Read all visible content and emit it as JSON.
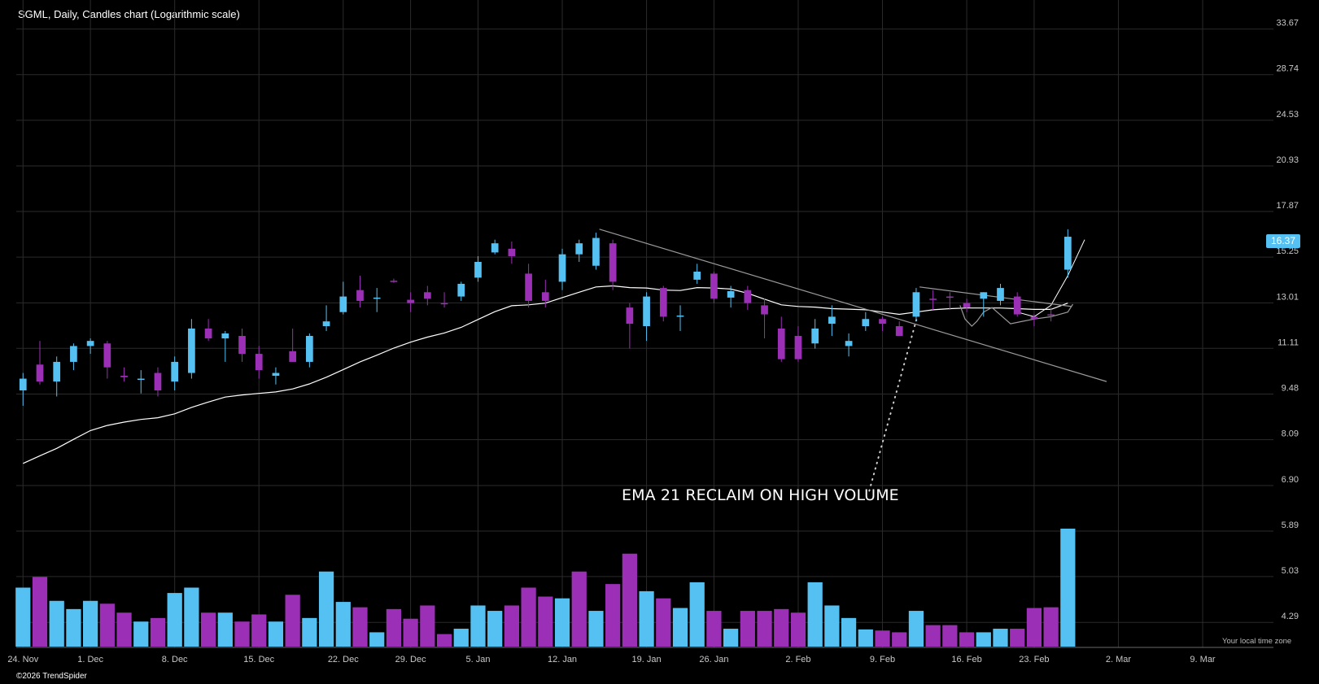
{
  "header": {
    "title": "SGML, Daily, Candles chart (Logarithmic scale)"
  },
  "footer": {
    "copyright": "©2026 TrendSpider",
    "timezone_label": "Your local time zone"
  },
  "last_price": "16.37",
  "annotation": "EMA 21 RECLAIM ON HIGH VOLUME",
  "colors": {
    "up": "#55c1f2",
    "down": "#9b2fb5",
    "ema": "#ffffff",
    "grid": "#2b2b2b",
    "trendline": "#9a9a9a",
    "background": "#000000"
  },
  "chart_data": {
    "type": "candlestick",
    "scale": "log",
    "y_ticks": [
      "33.67",
      "28.74",
      "24.53",
      "20.93",
      "17.87",
      "15.25",
      "13.01",
      "11.11",
      "9.48",
      "8.09",
      "6.90",
      "5.89",
      "5.03",
      "4.29"
    ],
    "ylim": [
      4.0,
      36.0
    ],
    "x_ticks": [
      {
        "label": "24. Nov",
        "i": 0
      },
      {
        "label": "1. Dec",
        "i": 4
      },
      {
        "label": "8. Dec",
        "i": 9
      },
      {
        "label": "15. Dec",
        "i": 14
      },
      {
        "label": "22. Dec",
        "i": 19
      },
      {
        "label": "29. Dec",
        "i": 23
      },
      {
        "label": "5. Jan",
        "i": 27
      },
      {
        "label": "12. Jan",
        "i": 32
      },
      {
        "label": "19. Jan",
        "i": 37
      },
      {
        "label": "26. Jan",
        "i": 41
      },
      {
        "label": "2. Feb",
        "i": 46
      },
      {
        "label": "9. Feb",
        "i": 51
      },
      {
        "label": "16. Feb",
        "i": 56
      },
      {
        "label": "23. Feb",
        "i": 60
      },
      {
        "label": "2. Mar",
        "i": 65
      },
      {
        "label": "9. Mar",
        "i": 70
      }
    ],
    "x_range": [
      -0.4,
      74.2
    ],
    "candles": [
      {
        "o": 9.6,
        "h": 10.2,
        "l": 9.1,
        "c": 10.0
      },
      {
        "o": 10.5,
        "h": 11.4,
        "l": 9.8,
        "c": 9.9
      },
      {
        "o": 9.9,
        "h": 10.8,
        "l": 9.4,
        "c": 10.6
      },
      {
        "o": 10.6,
        "h": 11.3,
        "l": 10.3,
        "c": 11.2
      },
      {
        "o": 11.2,
        "h": 11.5,
        "l": 10.9,
        "c": 11.4
      },
      {
        "o": 11.3,
        "h": 11.4,
        "l": 10.0,
        "c": 10.4
      },
      {
        "o": 10.1,
        "h": 10.4,
        "l": 9.9,
        "c": 10.05
      },
      {
        "o": 10.0,
        "h": 10.3,
        "l": 9.5,
        "c": 10.0
      },
      {
        "o": 10.2,
        "h": 10.4,
        "l": 9.4,
        "c": 9.6
      },
      {
        "o": 9.9,
        "h": 10.8,
        "l": 9.6,
        "c": 10.6
      },
      {
        "o": 10.2,
        "h": 12.3,
        "l": 10.0,
        "c": 11.9
      },
      {
        "o": 11.9,
        "h": 12.3,
        "l": 11.4,
        "c": 11.5
      },
      {
        "o": 11.5,
        "h": 11.8,
        "l": 10.6,
        "c": 11.7
      },
      {
        "o": 11.6,
        "h": 11.9,
        "l": 10.6,
        "c": 10.9
      },
      {
        "o": 10.9,
        "h": 11.2,
        "l": 10.0,
        "c": 10.3
      },
      {
        "o": 10.1,
        "h": 10.4,
        "l": 9.8,
        "c": 10.2
      },
      {
        "o": 11.0,
        "h": 11.9,
        "l": 10.6,
        "c": 10.6
      },
      {
        "o": 10.6,
        "h": 11.7,
        "l": 10.4,
        "c": 11.6
      },
      {
        "o": 12.0,
        "h": 12.9,
        "l": 11.8,
        "c": 12.2
      },
      {
        "o": 12.6,
        "h": 14.0,
        "l": 12.5,
        "c": 13.3
      },
      {
        "o": 13.6,
        "h": 14.3,
        "l": 12.8,
        "c": 13.1
      },
      {
        "o": 13.2,
        "h": 13.7,
        "l": 12.6,
        "c": 13.25
      },
      {
        "o": 14.05,
        "h": 14.15,
        "l": 13.95,
        "c": 14.0
      },
      {
        "o": 13.15,
        "h": 13.5,
        "l": 12.6,
        "c": 13.0
      },
      {
        "o": 13.5,
        "h": 13.8,
        "l": 12.9,
        "c": 13.2
      },
      {
        "o": 13.0,
        "h": 13.5,
        "l": 12.8,
        "c": 12.95
      },
      {
        "o": 13.3,
        "h": 14.0,
        "l": 13.1,
        "c": 13.9
      },
      {
        "o": 14.2,
        "h": 15.3,
        "l": 14.0,
        "c": 15.0
      },
      {
        "o": 15.5,
        "h": 16.2,
        "l": 15.4,
        "c": 16.0
      },
      {
        "o": 15.7,
        "h": 16.1,
        "l": 14.9,
        "c": 15.3
      },
      {
        "o": 14.4,
        "h": 14.9,
        "l": 12.8,
        "c": 13.1
      },
      {
        "o": 13.5,
        "h": 14.1,
        "l": 12.8,
        "c": 13.1
      },
      {
        "o": 14.0,
        "h": 15.7,
        "l": 13.6,
        "c": 15.4
      },
      {
        "o": 15.4,
        "h": 16.2,
        "l": 15.0,
        "c": 16.0
      },
      {
        "o": 14.8,
        "h": 16.6,
        "l": 14.6,
        "c": 16.3
      },
      {
        "o": 16.0,
        "h": 16.2,
        "l": 13.6,
        "c": 14.0
      },
      {
        "o": 12.8,
        "h": 13.0,
        "l": 11.1,
        "c": 12.1
      },
      {
        "o": 12.0,
        "h": 13.5,
        "l": 11.4,
        "c": 13.3
      },
      {
        "o": 13.7,
        "h": 13.8,
        "l": 12.2,
        "c": 12.4
      },
      {
        "o": 12.4,
        "h": 12.9,
        "l": 11.8,
        "c": 12.45
      },
      {
        "o": 14.1,
        "h": 14.9,
        "l": 13.9,
        "c": 14.5
      },
      {
        "o": 14.4,
        "h": 14.5,
        "l": 13.0,
        "c": 13.2
      },
      {
        "o": 13.25,
        "h": 13.8,
        "l": 12.8,
        "c": 13.55
      },
      {
        "o": 13.6,
        "h": 13.8,
        "l": 12.7,
        "c": 13.0
      },
      {
        "o": 12.9,
        "h": 13.2,
        "l": 11.5,
        "c": 12.5
      },
      {
        "o": 11.9,
        "h": 12.4,
        "l": 10.6,
        "c": 10.7
      },
      {
        "o": 11.6,
        "h": 12.0,
        "l": 10.6,
        "c": 10.7
      },
      {
        "o": 11.3,
        "h": 12.3,
        "l": 11.1,
        "c": 11.9
      },
      {
        "o": 12.1,
        "h": 12.9,
        "l": 11.6,
        "c": 12.4
      },
      {
        "o": 11.2,
        "h": 11.7,
        "l": 10.8,
        "c": 11.4
      },
      {
        "o": 12.0,
        "h": 12.6,
        "l": 11.8,
        "c": 12.3
      },
      {
        "o": 12.3,
        "h": 12.4,
        "l": 11.8,
        "c": 12.1
      },
      {
        "o": 12.0,
        "h": 12.2,
        "l": 11.6,
        "c": 11.6
      },
      {
        "o": 12.4,
        "h": 13.7,
        "l": 12.2,
        "c": 13.5
      },
      {
        "o": 13.2,
        "h": 13.6,
        "l": 12.7,
        "c": 13.15
      },
      {
        "o": 13.3,
        "h": 13.5,
        "l": 12.7,
        "c": 13.25
      },
      {
        "o": 13.0,
        "h": 13.2,
        "l": 12.6,
        "c": 12.8
      },
      {
        "o": 13.2,
        "h": 13.5,
        "l": 12.4,
        "c": 13.5
      },
      {
        "o": 13.1,
        "h": 13.9,
        "l": 12.9,
        "c": 13.7
      },
      {
        "o": 13.3,
        "h": 13.5,
        "l": 12.4,
        "c": 12.5
      },
      {
        "o": 12.4,
        "h": 12.5,
        "l": 12.0,
        "c": 12.3
      },
      {
        "o": 12.5,
        "h": 12.8,
        "l": 12.2,
        "c": 12.45
      },
      {
        "o": 14.6,
        "h": 16.8,
        "l": 14.2,
        "c": 16.37
      }
    ],
    "volume": [
      {
        "v": 4.55,
        "d": "up"
      },
      {
        "v": 4.85,
        "d": "down"
      },
      {
        "v": 4.18,
        "d": "up"
      },
      {
        "v": 3.95,
        "d": "up"
      },
      {
        "v": 4.18,
        "d": "up"
      },
      {
        "v": 4.1,
        "d": "down"
      },
      {
        "v": 3.85,
        "d": "down"
      },
      {
        "v": 3.6,
        "d": "up"
      },
      {
        "v": 3.7,
        "d": "down"
      },
      {
        "v": 4.4,
        "d": "up"
      },
      {
        "v": 4.55,
        "d": "up"
      },
      {
        "v": 3.85,
        "d": "down"
      },
      {
        "v": 3.85,
        "d": "up"
      },
      {
        "v": 3.6,
        "d": "down"
      },
      {
        "v": 3.8,
        "d": "down"
      },
      {
        "v": 3.6,
        "d": "up"
      },
      {
        "v": 4.35,
        "d": "down"
      },
      {
        "v": 3.7,
        "d": "up"
      },
      {
        "v": 5.0,
        "d": "up"
      },
      {
        "v": 4.15,
        "d": "up"
      },
      {
        "v": 4.0,
        "d": "down"
      },
      {
        "v": 3.3,
        "d": "up"
      },
      {
        "v": 3.95,
        "d": "down"
      },
      {
        "v": 3.68,
        "d": "down"
      },
      {
        "v": 4.05,
        "d": "down"
      },
      {
        "v": 3.25,
        "d": "down"
      },
      {
        "v": 3.4,
        "d": "up"
      },
      {
        "v": 4.05,
        "d": "up"
      },
      {
        "v": 3.9,
        "d": "up"
      },
      {
        "v": 4.05,
        "d": "down"
      },
      {
        "v": 4.55,
        "d": "down"
      },
      {
        "v": 4.3,
        "d": "down"
      },
      {
        "v": 4.25,
        "d": "up"
      },
      {
        "v": 5.0,
        "d": "down"
      },
      {
        "v": 3.9,
        "d": "up"
      },
      {
        "v": 4.65,
        "d": "down"
      },
      {
        "v": 5.5,
        "d": "down"
      },
      {
        "v": 4.45,
        "d": "up"
      },
      {
        "v": 4.25,
        "d": "down"
      },
      {
        "v": 3.98,
        "d": "up"
      },
      {
        "v": 4.7,
        "d": "up"
      },
      {
        "v": 3.9,
        "d": "down"
      },
      {
        "v": 3.4,
        "d": "up"
      },
      {
        "v": 3.9,
        "d": "down"
      },
      {
        "v": 3.9,
        "d": "down"
      },
      {
        "v": 3.95,
        "d": "down"
      },
      {
        "v": 3.85,
        "d": "down"
      },
      {
        "v": 4.7,
        "d": "up"
      },
      {
        "v": 4.05,
        "d": "up"
      },
      {
        "v": 3.7,
        "d": "up"
      },
      {
        "v": 3.38,
        "d": "up"
      },
      {
        "v": 3.35,
        "d": "down"
      },
      {
        "v": 3.3,
        "d": "down"
      },
      {
        "v": 3.9,
        "d": "up"
      },
      {
        "v": 3.5,
        "d": "down"
      },
      {
        "v": 3.5,
        "d": "down"
      },
      {
        "v": 3.3,
        "d": "down"
      },
      {
        "v": 3.3,
        "d": "up"
      },
      {
        "v": 3.4,
        "d": "up"
      },
      {
        "v": 3.4,
        "d": "down"
      },
      {
        "v": 3.98,
        "d": "down"
      },
      {
        "v": 4.0,
        "d": "down"
      },
      {
        "v": 6.2,
        "d": "up"
      }
    ],
    "volume_ylim": [
      2.9,
      6.2
    ],
    "ema21": [
      7.45,
      7.65,
      7.85,
      8.1,
      8.35,
      8.5,
      8.6,
      8.68,
      8.73,
      8.85,
      9.05,
      9.22,
      9.38,
      9.45,
      9.5,
      9.55,
      9.65,
      9.82,
      10.05,
      10.32,
      10.6,
      10.85,
      11.12,
      11.35,
      11.55,
      11.72,
      11.95,
      12.28,
      12.62,
      12.88,
      12.92,
      13.0,
      13.25,
      13.5,
      13.75,
      13.8,
      13.72,
      13.7,
      13.6,
      13.58,
      13.72,
      13.7,
      13.65,
      13.45,
      13.18,
      12.92,
      12.85,
      12.82,
      12.75,
      12.73,
      12.7,
      12.6,
      12.5,
      12.6,
      12.7,
      12.75,
      12.78,
      12.78,
      12.78,
      12.75,
      12.72,
      12.72,
      13.0
    ],
    "ema21_ext": [
      {
        "i": 59,
        "v": 12.6
      },
      {
        "i": 60,
        "v": 12.4
      },
      {
        "i": 61,
        "v": 12.9
      },
      {
        "i": 62,
        "v": 14.3
      },
      {
        "i": 63,
        "v": 16.2
      }
    ],
    "trendlines": [
      {
        "i1": 34.2,
        "v1": 16.8,
        "i2": 64.3,
        "v2": 9.9,
        "style": "solid"
      },
      {
        "i1": 53.2,
        "v1": 13.75,
        "i2": 62.2,
        "v2": 12.85,
        "style": "solid"
      },
      {
        "i1": 53.1,
        "v1": 12.5,
        "i2": 50.2,
        "v2": 6.75,
        "style": "dotted"
      }
    ],
    "consolidation_curve": [
      {
        "i": 55.6,
        "v": 12.9
      },
      {
        "i": 55.9,
        "v": 12.3
      },
      {
        "i": 56.3,
        "v": 12.0
      },
      {
        "i": 56.6,
        "v": 12.2
      },
      {
        "i": 57.0,
        "v": 12.6
      },
      {
        "i": 57.5,
        "v": 12.8
      },
      {
        "i": 58.2,
        "v": 12.35
      },
      {
        "i": 58.6,
        "v": 12.1
      },
      {
        "i": 59.3,
        "v": 12.2
      },
      {
        "i": 60.0,
        "v": 12.3
      },
      {
        "i": 61.0,
        "v": 12.4
      },
      {
        "i": 62.0,
        "v": 12.6
      },
      {
        "i": 62.3,
        "v": 12.95
      }
    ]
  }
}
